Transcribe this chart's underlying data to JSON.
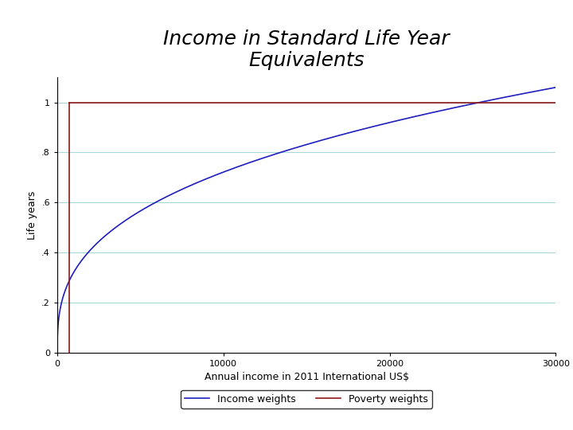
{
  "title": "Income in Standard Life Year\nEquivalents",
  "xlabel": "Annual income in 2011 International US$",
  "ylabel": "Life years",
  "xlim": [
    0,
    30000
  ],
  "ylim": [
    0,
    1.1
  ],
  "yticks": [
    0,
    0.2,
    0.4,
    0.6,
    0.8,
    1.0
  ],
  "ytick_labels": [
    "0",
    ".2",
    ".4",
    ".6",
    ".8",
    "1"
  ],
  "xticks": [
    0,
    10000,
    20000,
    30000
  ],
  "poverty_line_x": 700,
  "curve_power": 0.35,
  "curve_x_ref": 30000,
  "curve_y_at_ref": 1.06,
  "line_color_income": "#1f1fbf",
  "line_color_poverty": "#8b1a1a",
  "title_fontsize": 18,
  "axis_label_fontsize": 9,
  "tick_fontsize": 8,
  "legend_fontsize": 9,
  "grid_color": "#aad8d8",
  "background_color": "#ffffff"
}
